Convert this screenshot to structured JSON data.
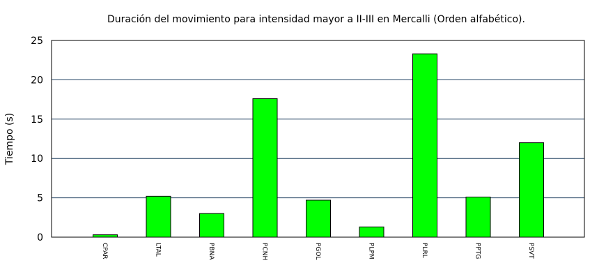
{
  "chart_data": {
    "type": "bar",
    "title": "Duración del movimiento para intensidad mayor a II-III en Mercalli (Orden alfabético).",
    "xlabel": "",
    "ylabel": "Tiempo (s)",
    "categories": [
      "CPAR",
      "LTAL",
      "PBNA",
      "PCNH",
      "PGOL",
      "PLPM",
      "PLRL",
      "PPTG",
      "PSVT"
    ],
    "values": [
      0.3,
      5.2,
      3.0,
      17.6,
      4.7,
      1.3,
      23.3,
      5.1,
      12.0
    ],
    "ylim": [
      0,
      25
    ],
    "yticks": [
      0,
      5,
      10,
      15,
      20,
      25
    ],
    "grid": true,
    "bar_color": "#00ff00",
    "grid_color": "#1f3f5f"
  }
}
